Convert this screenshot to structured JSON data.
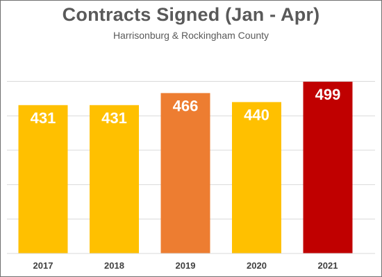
{
  "chart_data": {
    "type": "bar",
    "title": "Contracts Signed (Jan - Apr)",
    "subtitle": "Harrisonburg & Rockingham County",
    "categories": [
      "2017",
      "2018",
      "2019",
      "2020",
      "2021"
    ],
    "values": [
      431,
      431,
      466,
      440,
      499
    ],
    "bar_colors": [
      "#ffc000",
      "#ffc000",
      "#ed7d31",
      "#ffc000",
      "#c00000"
    ],
    "value_label_color": "#ffffff",
    "ylim": [
      0,
      550
    ],
    "grid": true,
    "gridline_step": 100,
    "legend": "none",
    "xlabel": "",
    "ylabel": ""
  }
}
